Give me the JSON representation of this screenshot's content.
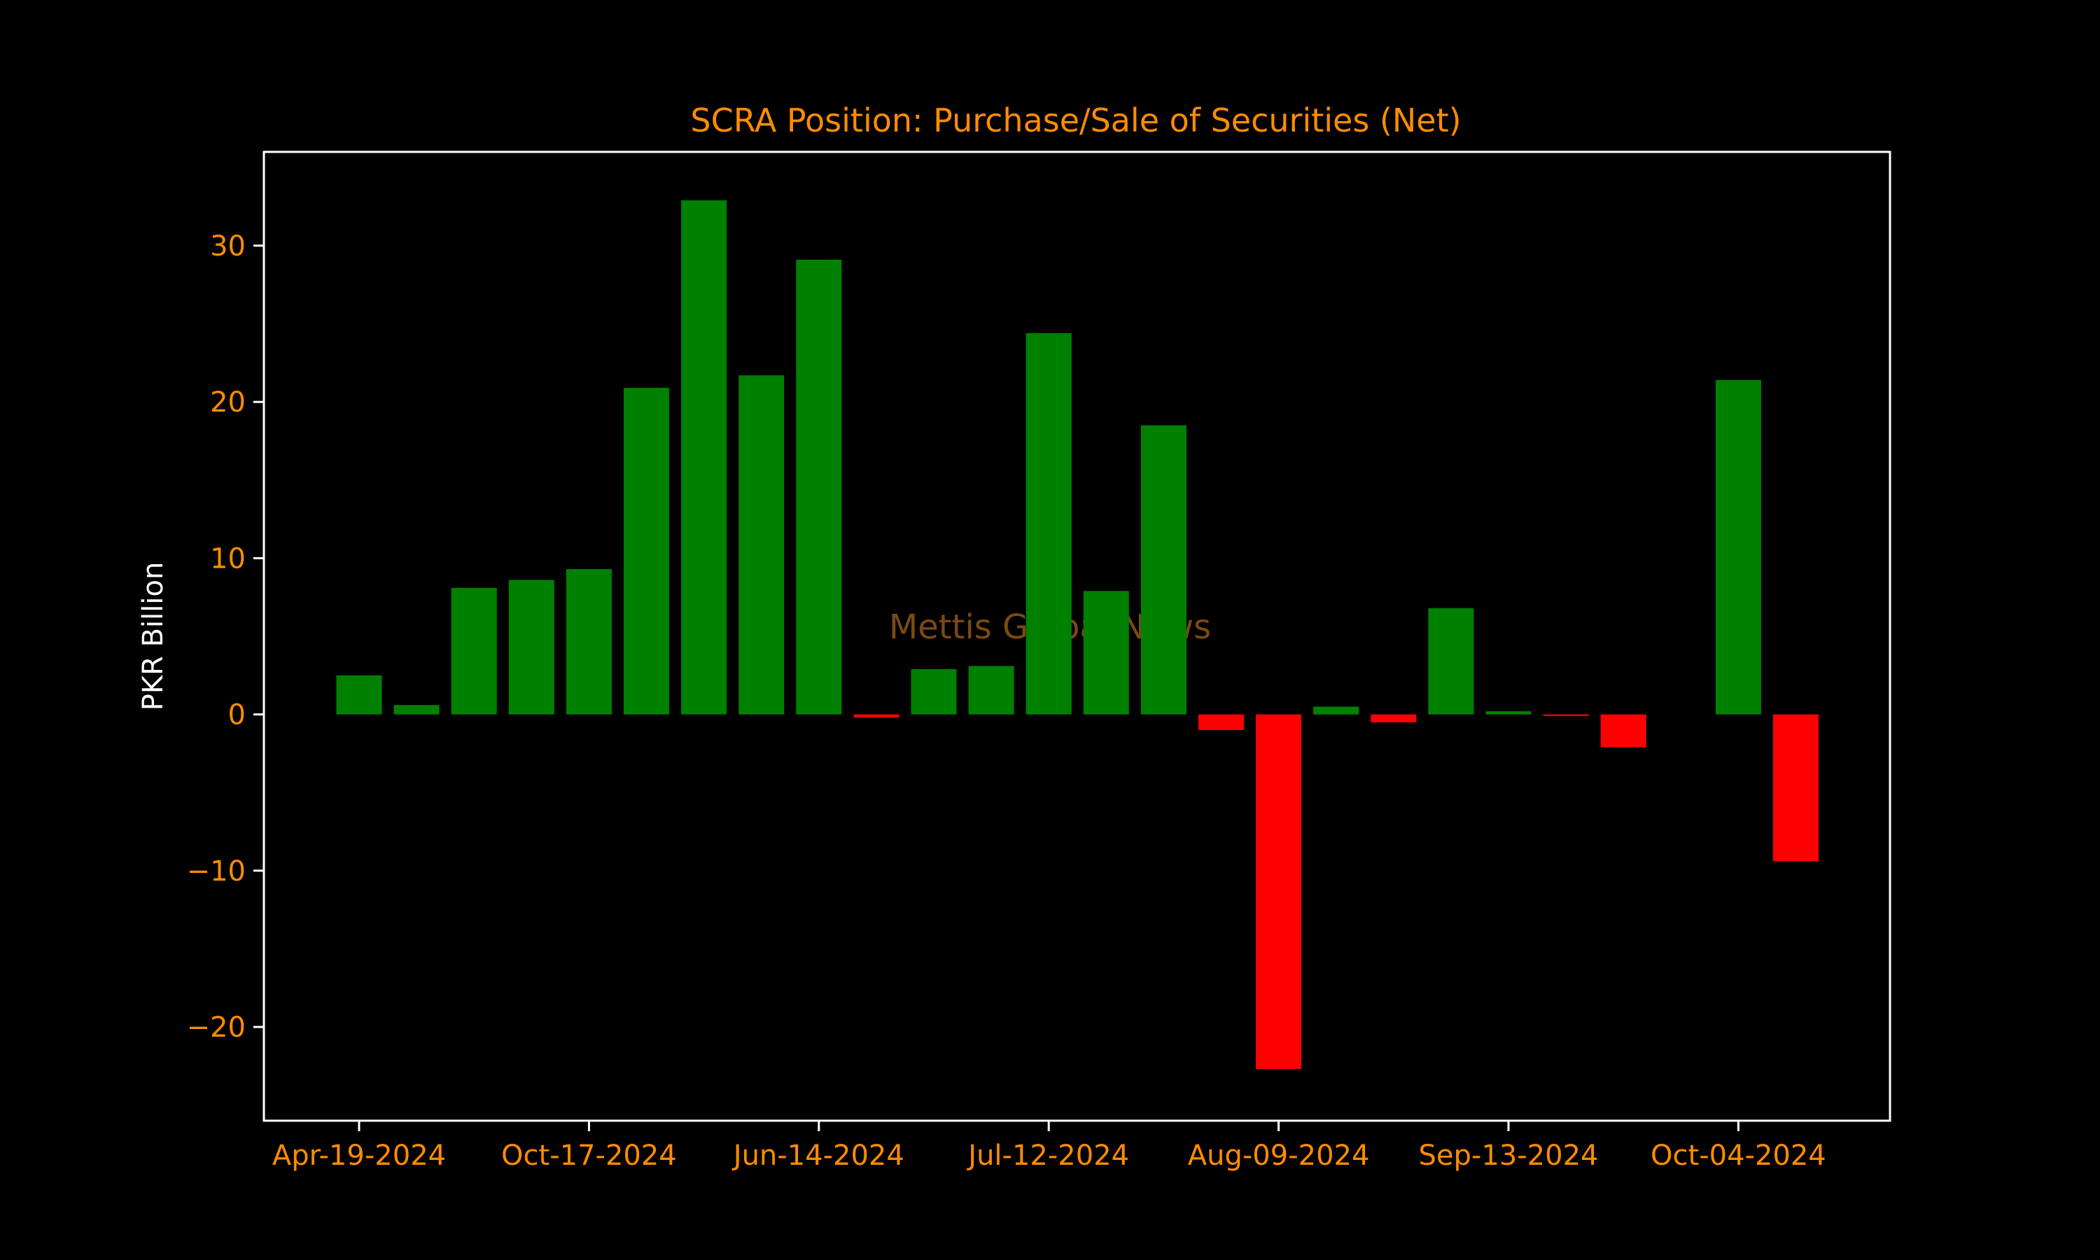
{
  "colors": {
    "background": "#000000",
    "title": "#ff8c00",
    "tick_labels": "#ff8c00",
    "axis_label": "#ffffff",
    "axes_frame": "#ffffff",
    "positive_bar": "#008000",
    "negative_bar": "#ff0000",
    "watermark": "#7a4a14"
  },
  "watermark": "Mettis Global News",
  "chart_data": {
    "type": "bar",
    "title": "SCRA Position: Purchase/Sale of Securities (Net)",
    "xlabel": "",
    "ylabel": "PKR Billion",
    "ylim": [
      -26,
      36
    ],
    "yticks": [
      -20,
      -10,
      0,
      10,
      20,
      30
    ],
    "ytick_labels": [
      "−20",
      "−10",
      "0",
      "10",
      "20",
      "30"
    ],
    "xtick_labels": [
      {
        "index": 0,
        "label": "Apr-19-2024"
      },
      {
        "index": 4,
        "label": "Oct-17-2024"
      },
      {
        "index": 8,
        "label": "Jun-14-2024"
      },
      {
        "index": 12,
        "label": "Jul-12-2024"
      },
      {
        "index": 16,
        "label": "Aug-09-2024"
      },
      {
        "index": 20,
        "label": "Sep-13-2024"
      },
      {
        "index": 24,
        "label": "Oct-04-2024"
      }
    ],
    "values": [
      2.5,
      0.6,
      8.1,
      8.6,
      9.3,
      20.9,
      32.9,
      21.7,
      29.1,
      -0.2,
      2.9,
      3.1,
      24.4,
      7.9,
      18.5,
      -1.0,
      -22.7,
      0.5,
      -0.5,
      6.8,
      0.2,
      -0.1,
      -2.1,
      0.0,
      21.4,
      -9.4
    ],
    "grid": false,
    "legend": "none"
  }
}
